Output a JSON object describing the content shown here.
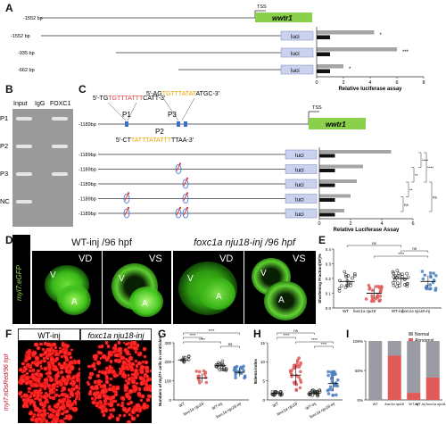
{
  "panelA": {
    "label": "A",
    "tss": "TSS",
    "gene": "wwtr1",
    "luci": "luci",
    "constructs": [
      {
        "start": "-1552 bp",
        "type": "gene",
        "value": null,
        "sig": ""
      },
      {
        "start": "-1552 bp",
        "type": "luci",
        "value": 4.3,
        "sig": "*"
      },
      {
        "start": "-935 bp",
        "type": "luci",
        "value": 6.0,
        "sig": "***"
      },
      {
        "start": "-662 bp",
        "type": "luci",
        "value": 2.0,
        "sig": "*"
      }
    ],
    "control_value": 1.0,
    "xlabel": "Relative luciferase  assay",
    "ticks": [
      "0",
      "2",
      "4",
      "6",
      "8"
    ],
    "xmax": 8
  },
  "panelB": {
    "label": "B",
    "columns": [
      "Input",
      "IgG",
      "FOXC1"
    ],
    "rows": [
      "P1",
      "P2",
      "P3",
      "NC"
    ],
    "bands": [
      [
        1,
        0,
        1
      ],
      [
        1,
        0,
        1
      ],
      [
        1,
        0,
        1
      ],
      [
        1,
        0,
        0
      ]
    ]
  },
  "panelC": {
    "label": "C",
    "seq1": {
      "pre": "5'-TG",
      "motif": "TGTTTATTT",
      "post": "CATT-3'"
    },
    "seq2": {
      "pre": "5'-AG",
      "motif": "TGTTTATAT",
      "post": "ATGC-3'"
    },
    "seq3": {
      "pre": "5'-CT",
      "motif": "TATTTATATTT",
      "post": "TTAA-3'"
    },
    "sites": [
      "P1",
      "P2",
      "P3"
    ],
    "tss": "TSS",
    "gene": "wwtr1",
    "luci": "luci",
    "main_start": "-1189bp",
    "constructs": [
      {
        "start": "-1189bp",
        "value": 4.6,
        "mut": []
      },
      {
        "start": "-1189bp",
        "value": 2.8,
        "mut": [
          1
        ]
      },
      {
        "start": "-1189bp",
        "value": 2.4,
        "mut": [
          2
        ]
      },
      {
        "start": "-1189bp",
        "value": 2.0,
        "mut": [
          0,
          2
        ]
      },
      {
        "start": "-1189bp",
        "value": 1.6,
        "mut": [
          0,
          1,
          2
        ]
      }
    ],
    "control_value": 1.0,
    "sig": [
      "****",
      "****",
      "**",
      "**",
      "ns",
      "ns"
    ],
    "xlabel": "Relative Luciferase Assay",
    "ticks": [
      "0",
      "2",
      "4",
      "6"
    ],
    "xmax": 6
  },
  "panelD": {
    "label": "D",
    "side_label": "myl7:eGFP",
    "headers": [
      "WT-inj /96 hpf",
      "foxc1a nju18-inj /96 hpf"
    ],
    "tiles": [
      "VD",
      "VS",
      "VD",
      "VS"
    ],
    "chambers": [
      "V",
      "A"
    ]
  },
  "panelE": {
    "label": "E",
    "ylabel": "Shortening Fraction(SF)%",
    "groups": [
      "WT",
      "foxc1a nju18",
      "WT-inj",
      "foxc1a nju18-inj"
    ],
    "means": [
      0.18,
      0.1,
      0.2,
      0.18
    ],
    "yticks": [
      "0.0",
      "0.1",
      "0.2",
      "0.3",
      "0.4"
    ],
    "ymax": 0.4,
    "sig": [
      "ns",
      "ns",
      "****"
    ],
    "colors": [
      "#222222",
      "#e05a5a",
      "#222222",
      "#4a7fc0"
    ]
  },
  "panelF": {
    "label": "F",
    "headers": [
      "WT-inj",
      "foxc1a nju18-inj"
    ],
    "side_label": "myl7:nDsRed/96 hpf"
  },
  "panelG": {
    "label": "G",
    "ylabel": "Numbers of myl7+ cells in ventricles",
    "groups": [
      "WT",
      "foxc1a nju18",
      "WT-inj",
      "foxc1a nju18-inj"
    ],
    "means": [
      210,
      115,
      180,
      145
    ],
    "yticks": [
      "0",
      "100",
      "200",
      "300"
    ],
    "ymax": 300,
    "sig": [
      "****",
      "****",
      "****",
      "ns"
    ],
    "colors": [
      "#222222",
      "#e05a5a",
      "#222222",
      "#4a7fc0"
    ]
  },
  "panelH": {
    "label": "H",
    "ylabel": "Edema index",
    "groups": [
      "WT",
      "foxc1a nju18",
      "WT-inj",
      "foxc1a nju18-inj"
    ],
    "means": [
      1.7,
      6.5,
      1.8,
      4.3
    ],
    "yticks": [
      "0",
      "5",
      "10",
      "15"
    ],
    "ymax": 15,
    "sig": [
      "ns",
      "****",
      "****",
      "****"
    ],
    "colors": [
      "#222222",
      "#e05a5a",
      "#222222",
      "#4a7fc0"
    ]
  },
  "panelI": {
    "label": "I",
    "legend": [
      "Normal",
      "Abnormal"
    ],
    "groups": [
      "WT",
      "foxc1a nju18",
      "WT-inj",
      "WT-inj foxc1a nju18-inj"
    ],
    "abnormal_pct": [
      0,
      75,
      12,
      38
    ],
    "yticks": [
      "0%",
      "50%",
      "100%"
    ],
    "colors": {
      "normal": "#9b9ba3",
      "abnormal": "#e05a5a"
    }
  }
}
